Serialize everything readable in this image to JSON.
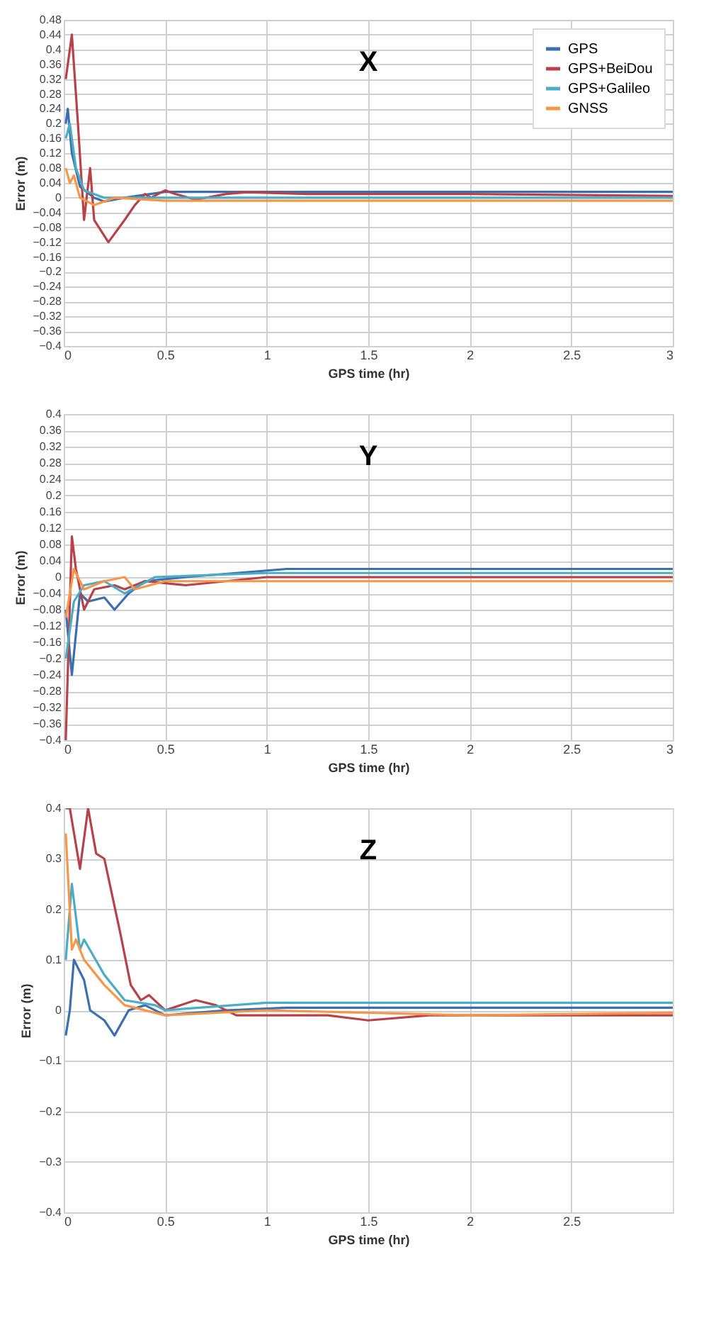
{
  "chart_data": [
    {
      "type": "line",
      "title": "X",
      "xlabel": "GPS time (hr)",
      "ylabel": "Error (m)",
      "xlim": [
        0,
        3
      ],
      "xticks": [
        0,
        0.5,
        1,
        1.5,
        2,
        2.5,
        3
      ],
      "ylim": [
        -0.4,
        0.48
      ],
      "yticks": [
        -0.4,
        -0.36,
        -0.32,
        -0.28,
        -0.24,
        -0.2,
        -0.16,
        -0.12,
        -0.08,
        -0.04,
        0,
        0.04,
        0.08,
        0.12,
        0.16,
        0.2,
        0.24,
        0.28,
        0.32,
        0.36,
        0.4,
        0.44,
        0.48
      ],
      "grid": true,
      "legend": "top right",
      "series": [
        {
          "name": "GPS",
          "color": "#3c6fb0",
          "x": [
            0.01,
            0.02,
            0.04,
            0.08,
            0.15,
            0.2,
            0.3,
            0.5,
            1,
            2,
            3
          ],
          "values": [
            0.2,
            0.24,
            0.12,
            0.03,
            0,
            -0.01,
            0,
            0.016,
            0.016,
            0.016,
            0.016
          ]
        },
        {
          "name": "GPS+BeiDou",
          "color": "#b8414a",
          "x": [
            0.01,
            0.04,
            0.07,
            0.1,
            0.13,
            0.15,
            0.22,
            0.3,
            0.35,
            0.4,
            0.43,
            0.5,
            0.55,
            0.65,
            0.8,
            0.9,
            1.2,
            2,
            3
          ],
          "values": [
            0.32,
            0.44,
            0.2,
            -0.06,
            0.08,
            -0.06,
            -0.12,
            -0.06,
            -0.02,
            0.01,
            0,
            0.02,
            0.01,
            -0.005,
            0.01,
            0.015,
            0.01,
            0.01,
            0.005
          ]
        },
        {
          "name": "GPS+Galileo",
          "color": "#4bacc6",
          "x": [
            0.01,
            0.03,
            0.06,
            0.1,
            0.2,
            0.5,
            1,
            2,
            3
          ],
          "values": [
            0.16,
            0.2,
            0.08,
            0.02,
            0,
            0,
            0,
            0,
            0
          ]
        },
        {
          "name": "GNSS",
          "color": "#f79646",
          "x": [
            0.01,
            0.03,
            0.05,
            0.08,
            0.15,
            0.25,
            0.5,
            1,
            2,
            3
          ],
          "values": [
            0.08,
            0.04,
            0.06,
            0,
            -0.02,
            0,
            -0.008,
            -0.008,
            -0.008,
            -0.008
          ]
        }
      ]
    },
    {
      "type": "line",
      "title": "Y",
      "xlabel": "GPS time (hr)",
      "ylabel": "Error (m)",
      "xlim": [
        0,
        3
      ],
      "xticks": [
        0,
        0.5,
        1,
        1.5,
        2,
        2.5,
        3
      ],
      "ylim": [
        -0.4,
        0.4
      ],
      "yticks": [
        -0.4,
        -0.36,
        -0.32,
        -0.28,
        -0.24,
        -0.2,
        -0.16,
        -0.12,
        -0.08,
        -0.04,
        0,
        0.04,
        0.08,
        0.12,
        0.16,
        0.2,
        0.24,
        0.28,
        0.32,
        0.36,
        0.4
      ],
      "grid": true,
      "legend": "top right",
      "series": [
        {
          "name": "GPS",
          "color": "#3c6fb0",
          "x": [
            0.01,
            0.04,
            0.08,
            0.12,
            0.2,
            0.25,
            0.32,
            0.4,
            0.6,
            1.1,
            1.5,
            3
          ],
          "values": [
            -0.08,
            -0.24,
            -0.04,
            -0.06,
            -0.05,
            -0.08,
            -0.04,
            -0.01,
            0,
            0.02,
            0.02,
            0.02
          ]
        },
        {
          "name": "GPS+BeiDou",
          "color": "#b8414a",
          "x": [
            0.01,
            0.04,
            0.06,
            0.1,
            0.15,
            0.25,
            0.3,
            0.4,
            0.6,
            1,
            1.4,
            3
          ],
          "values": [
            -0.4,
            0.1,
            0.02,
            -0.08,
            -0.03,
            -0.02,
            -0.03,
            -0.01,
            -0.02,
            0,
            0,
            0
          ]
        },
        {
          "name": "GPS+Galileo",
          "color": "#4bacc6",
          "x": [
            0.01,
            0.05,
            0.1,
            0.2,
            0.3,
            0.45,
            1,
            3
          ],
          "values": [
            -0.2,
            -0.06,
            -0.02,
            -0.01,
            -0.04,
            0,
            0.01,
            0.01
          ]
        },
        {
          "name": "GNSS",
          "color": "#f79646",
          "x": [
            0.01,
            0.05,
            0.1,
            0.2,
            0.3,
            0.35,
            0.5,
            1,
            3
          ],
          "values": [
            -0.1,
            0.02,
            -0.03,
            -0.01,
            0,
            -0.03,
            -0.01,
            -0.01,
            -0.01
          ]
        }
      ]
    },
    {
      "type": "line",
      "title": "Z",
      "xlabel": "GPS time (hr)",
      "ylabel": "Error (m)",
      "xlim": [
        0,
        3
      ],
      "xticks": [
        0,
        0.5,
        1,
        1.5,
        2,
        2.5
      ],
      "ylim": [
        -0.4,
        0.4
      ],
      "yticks": [
        -0.4,
        -0.3,
        -0.2,
        -0.1,
        0,
        0.1,
        0.2,
        0.3,
        0.4
      ],
      "grid": true,
      "legend": "top right",
      "series": [
        {
          "name": "GPS",
          "color": "#3c6fb0",
          "x": [
            0.01,
            0.03,
            0.05,
            0.1,
            0.13,
            0.2,
            0.25,
            0.32,
            0.4,
            0.5,
            0.8,
            1.1,
            2,
            3
          ],
          "values": [
            -0.05,
            0,
            0.1,
            0.06,
            0,
            -0.02,
            -0.05,
            0,
            0.01,
            -0.01,
            0,
            0.005,
            0.005,
            0.005
          ]
        },
        {
          "name": "GPS+BeiDou",
          "color": "#b8414a",
          "x": [
            0.01,
            0.03,
            0.08,
            0.12,
            0.16,
            0.2,
            0.28,
            0.33,
            0.38,
            0.42,
            0.5,
            0.65,
            0.75,
            0.85,
            1,
            1.3,
            1.5,
            1.8,
            3
          ],
          "values": [
            0.4,
            0.4,
            0.28,
            0.4,
            0.31,
            0.3,
            0.15,
            0.05,
            0.02,
            0.03,
            0,
            0.02,
            0.01,
            -0.01,
            -0.01,
            -0.01,
            -0.02,
            -0.01,
            -0.01
          ]
        },
        {
          "name": "GPS+Galileo",
          "color": "#4bacc6",
          "x": [
            0.01,
            0.04,
            0.08,
            0.1,
            0.2,
            0.3,
            0.45,
            0.5,
            1,
            2,
            3
          ],
          "values": [
            0.1,
            0.25,
            0.12,
            0.14,
            0.07,
            0.02,
            0.01,
            0,
            0.015,
            0.015,
            0.015
          ]
        },
        {
          "name": "GNSS",
          "color": "#f79646",
          "x": [
            0.01,
            0.04,
            0.06,
            0.1,
            0.2,
            0.3,
            0.5,
            1,
            2,
            3
          ],
          "values": [
            0.35,
            0.12,
            0.14,
            0.1,
            0.05,
            0.01,
            -0.01,
            0,
            -0.01,
            -0.005
          ]
        }
      ]
    }
  ]
}
